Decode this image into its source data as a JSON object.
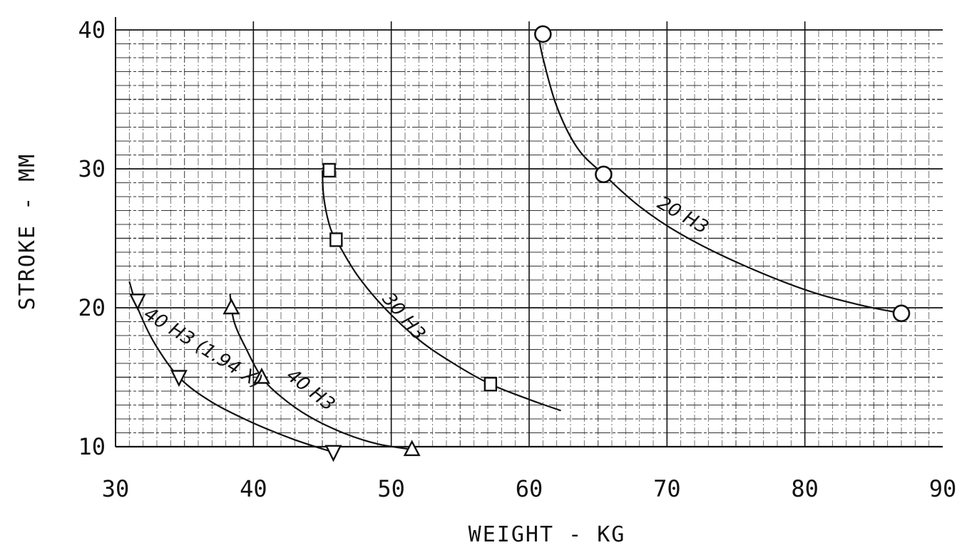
{
  "chart_data": {
    "type": "line",
    "title": "",
    "xlabel": "WEIGHT - KG",
    "ylabel": "STROKE - MM",
    "xlim": [
      30,
      90
    ],
    "ylim": [
      10,
      40
    ],
    "x_ticks": [
      "30",
      "40",
      "50",
      "60",
      "70",
      "80",
      "90"
    ],
    "y_ticks": [
      "10",
      "20",
      "30",
      "40"
    ],
    "grid": true,
    "legend": "none",
    "series": [
      {
        "name": "20 H3",
        "marker": "circle",
        "points": [
          [
            61.0,
            39.7
          ],
          [
            65.4,
            29.6
          ],
          [
            87.0,
            19.6
          ]
        ],
        "curve": [
          [
            60.6,
            40.0
          ],
          [
            61.0,
            38.0
          ],
          [
            62.0,
            34.5
          ],
          [
            63.5,
            31.5
          ],
          [
            65.4,
            29.6
          ],
          [
            68.0,
            27.3
          ],
          [
            71.0,
            25.3
          ],
          [
            75.0,
            23.3
          ],
          [
            80.0,
            21.3
          ],
          [
            84.0,
            20.2
          ],
          [
            87.0,
            19.6
          ]
        ]
      },
      {
        "name": "30 H3",
        "marker": "square",
        "points": [
          [
            45.5,
            29.9
          ],
          [
            46.0,
            24.9
          ],
          [
            57.2,
            14.5
          ]
        ],
        "curve": [
          [
            45.0,
            29.9
          ],
          [
            45.1,
            28.0
          ],
          [
            45.5,
            26.0
          ],
          [
            46.0,
            24.9
          ],
          [
            47.5,
            22.4
          ],
          [
            49.5,
            20.0
          ],
          [
            52.0,
            17.7
          ],
          [
            54.5,
            16.0
          ],
          [
            57.2,
            14.5
          ],
          [
            60.0,
            13.4
          ],
          [
            62.3,
            12.6
          ]
        ]
      },
      {
        "name": "40 H3",
        "marker": "triangle",
        "points": [
          [
            38.4,
            20.0
          ],
          [
            40.6,
            15.0
          ],
          [
            51.5,
            9.8
          ]
        ],
        "curve": [
          [
            38.3,
            21.0
          ],
          [
            38.6,
            19.0
          ],
          [
            39.5,
            17.0
          ],
          [
            40.6,
            15.0
          ],
          [
            42.0,
            13.6
          ],
          [
            44.0,
            12.2
          ],
          [
            46.5,
            11.0
          ],
          [
            49.0,
            10.2
          ],
          [
            51.5,
            9.8
          ]
        ]
      },
      {
        "name": "40 H3 (1.94 X)",
        "marker": "triangle-down",
        "points": [
          [
            31.6,
            20.5
          ],
          [
            34.6,
            15.0
          ],
          [
            45.8,
            9.6
          ]
        ],
        "curve": [
          [
            31.0,
            21.9
          ],
          [
            31.6,
            20.0
          ],
          [
            32.8,
            17.5
          ],
          [
            34.6,
            15.0
          ],
          [
            37.0,
            13.2
          ],
          [
            40.0,
            11.7
          ],
          [
            43.0,
            10.5
          ],
          [
            45.8,
            9.6
          ]
        ]
      }
    ],
    "annotations": [
      "20 H3",
      "30 H3",
      "40 H3",
      "40 H3 (1.94 X)"
    ]
  }
}
